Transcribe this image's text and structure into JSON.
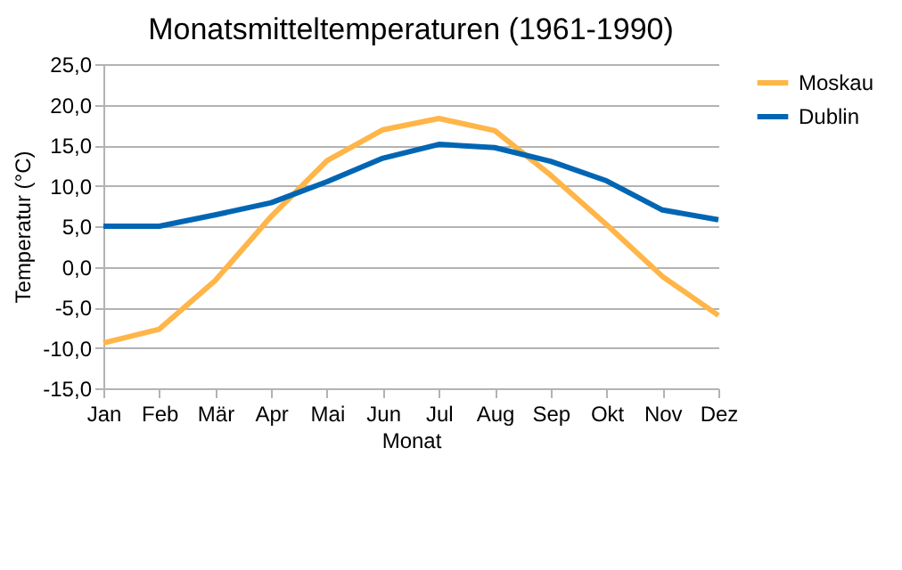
{
  "chart_data": {
    "type": "line",
    "title": "Monatsmitteltemperaturen (1961-1990)",
    "xlabel": "Monat",
    "ylabel": "Temperatur (°C)",
    "categories": [
      "Jan",
      "Feb",
      "Mär",
      "Apr",
      "Mai",
      "Jun",
      "Jul",
      "Aug",
      "Sep",
      "Okt",
      "Nov",
      "Dez"
    ],
    "series": [
      {
        "name": "Moskau",
        "color": "#ffb548",
        "values": [
          -9.4,
          -7.7,
          -1.7,
          6.2,
          13.1,
          16.9,
          18.3,
          16.8,
          11.3,
          5.2,
          -1.2,
          -6.0
        ]
      },
      {
        "name": "Dublin",
        "color": "#0066b3",
        "values": [
          5.0,
          5.0,
          6.4,
          7.9,
          10.5,
          13.4,
          15.1,
          14.7,
          13.0,
          10.6,
          7.0,
          5.8
        ]
      }
    ],
    "ylim": [
      -15,
      25
    ],
    "yticks": [
      {
        "value": -15,
        "label": "-15,0"
      },
      {
        "value": -10,
        "label": "-10,0"
      },
      {
        "value": -5,
        "label": "-5,0"
      },
      {
        "value": 0,
        "label": "0,0"
      },
      {
        "value": 5,
        "label": "5,0"
      },
      {
        "value": 10,
        "label": "10,0"
      },
      {
        "value": 15,
        "label": "15,0"
      },
      {
        "value": 20,
        "label": "20,0"
      },
      {
        "value": 25,
        "label": "25,0"
      }
    ],
    "grid": "y",
    "legend": "right",
    "marker": "none",
    "line_style": "solid"
  }
}
